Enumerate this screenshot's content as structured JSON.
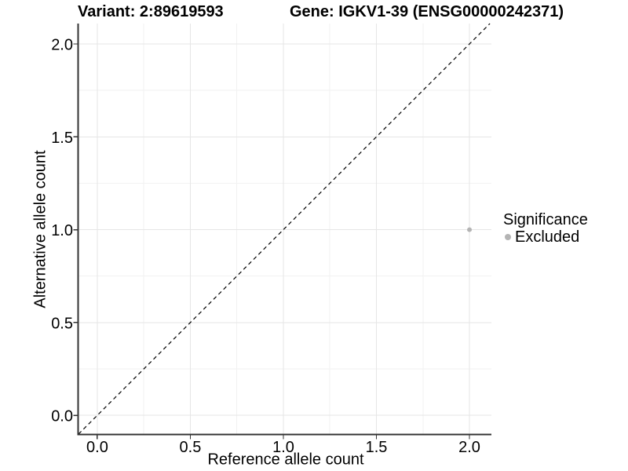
{
  "chart_data": {
    "type": "scatter",
    "title_left": "Variant: 2:89619593",
    "title_right": "Gene: IGKV1-39 (ENSG00000242371)",
    "xlabel": "Reference allele count",
    "ylabel": "Alternative allele count",
    "x_ticks": [
      0.0,
      0.5,
      1.0,
      1.5,
      2.0
    ],
    "y_ticks": [
      0.0,
      0.5,
      1.0,
      1.5,
      2.0
    ],
    "x_tick_labels": [
      "0.0",
      "0.5",
      "1.0",
      "1.5",
      "2.0"
    ],
    "y_tick_labels": [
      "0.0",
      "0.5",
      "1.0",
      "1.5",
      "2.0"
    ],
    "xlim": [
      -0.101,
      2.118
    ],
    "ylim": [
      -0.101,
      2.11
    ],
    "grid": {
      "major": true,
      "minor": true
    },
    "points": [
      {
        "x": 2.0,
        "y": 1.0,
        "series": "Excluded"
      }
    ],
    "reference_line": {
      "style": "dashed",
      "slope": 1,
      "intercept": 0
    },
    "legend": {
      "title": "Significance",
      "position": "right",
      "items": [
        {
          "label": "Excluded",
          "color": "#b4b4b4"
        }
      ]
    },
    "colors": {
      "point": "#b4b4b4",
      "grid_major": "#e6e6e6",
      "grid_minor": "#f2f2f2",
      "axis_line": "#333333",
      "tick_mark": "#333333",
      "text": "#000000"
    }
  }
}
